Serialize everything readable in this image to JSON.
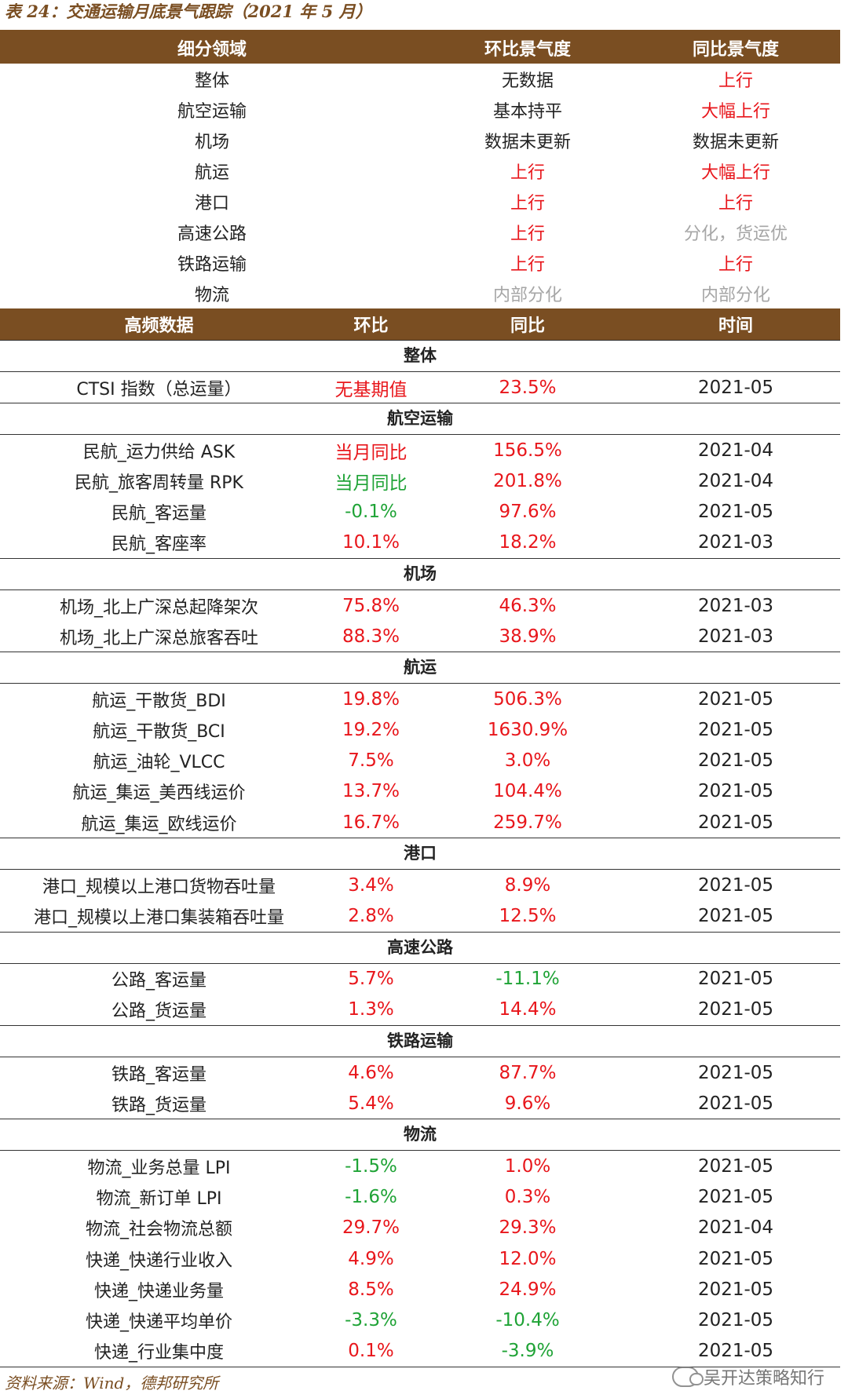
{
  "caption": "表 24：交通运输月底景气跟踪（2021 年 5 月）",
  "summary": {
    "headers": [
      "细分领域",
      "环比景气度",
      "同比景气度"
    ],
    "rows": [
      {
        "field": "整体",
        "mom": "无数据",
        "yoy": "上行",
        "mom_color": "dark",
        "yoy_color": "red"
      },
      {
        "field": "航空运输",
        "mom": "基本持平",
        "yoy": "大幅上行",
        "mom_color": "dark",
        "yoy_color": "red"
      },
      {
        "field": "机场",
        "mom": "数据未更新",
        "yoy": "数据未更新",
        "mom_color": "dark",
        "yoy_color": "dark"
      },
      {
        "field": "航运",
        "mom": "上行",
        "yoy": "大幅上行",
        "mom_color": "red",
        "yoy_color": "red"
      },
      {
        "field": "港口",
        "mom": "上行",
        "yoy": "上行",
        "mom_color": "red",
        "yoy_color": "red"
      },
      {
        "field": "高速公路",
        "mom": "上行",
        "yoy": "分化，货运优",
        "mom_color": "red",
        "yoy_color": "grey"
      },
      {
        "field": "铁路运输",
        "mom": "上行",
        "yoy": "上行",
        "mom_color": "red",
        "yoy_color": "red"
      },
      {
        "field": "物流",
        "mom": "内部分化",
        "yoy": "内部分化",
        "mom_color": "grey",
        "yoy_color": "grey"
      }
    ]
  },
  "detail": {
    "headers": [
      "高频数据",
      "环比",
      "同比",
      "时间"
    ],
    "groups": [
      {
        "title": "整体",
        "rows": [
          {
            "name": "CTSI 指数（总运量）",
            "mom": "无基期值",
            "yoy": "23.5%",
            "time": "2021-05",
            "mom_color": "red",
            "yoy_color": "red"
          }
        ]
      },
      {
        "title": "航空运输",
        "rows": [
          {
            "name": "民航_运力供给 ASK",
            "mom": "当月同比",
            "yoy": "156.5%",
            "time": "2021-04",
            "mom_color": "red",
            "yoy_color": "red"
          },
          {
            "name": "民航_旅客周转量 RPK",
            "mom": "当月同比",
            "yoy": "201.8%",
            "time": "2021-04",
            "mom_color": "green",
            "yoy_color": "red"
          },
          {
            "name": "民航_客运量",
            "mom": "-0.1%",
            "yoy": "97.6%",
            "time": "2021-05",
            "mom_color": "green",
            "yoy_color": "red"
          },
          {
            "name": "民航_客座率",
            "mom": "10.1%",
            "yoy": "18.2%",
            "time": "2021-03",
            "mom_color": "red",
            "yoy_color": "red"
          }
        ]
      },
      {
        "title": "机场",
        "rows": [
          {
            "name": "机场_北上广深总起降架次",
            "mom": "75.8%",
            "yoy": "46.3%",
            "time": "2021-03",
            "mom_color": "red",
            "yoy_color": "red"
          },
          {
            "name": "机场_北上广深总旅客吞吐",
            "mom": "88.3%",
            "yoy": "38.9%",
            "time": "2021-03",
            "mom_color": "red",
            "yoy_color": "red"
          }
        ]
      },
      {
        "title": "航运",
        "rows": [
          {
            "name": "航运_干散货_BDI",
            "mom": "19.8%",
            "yoy": "506.3%",
            "time": "2021-05",
            "mom_color": "red",
            "yoy_color": "red"
          },
          {
            "name": "航运_干散货_BCI",
            "mom": "19.2%",
            "yoy": "1630.9%",
            "time": "2021-05",
            "mom_color": "red",
            "yoy_color": "red"
          },
          {
            "name": "航运_油轮_VLCC",
            "mom": "7.5%",
            "yoy": "3.0%",
            "time": "2021-05",
            "mom_color": "red",
            "yoy_color": "red"
          },
          {
            "name": "航运_集运_美西线运价",
            "mom": "13.7%",
            "yoy": "104.4%",
            "time": "2021-05",
            "mom_color": "red",
            "yoy_color": "red"
          },
          {
            "name": "航运_集运_欧线运价",
            "mom": "16.7%",
            "yoy": "259.7%",
            "time": "2021-05",
            "mom_color": "red",
            "yoy_color": "red"
          }
        ]
      },
      {
        "title": "港口",
        "rows": [
          {
            "name": "港口_规模以上港口货物吞吐量",
            "mom": "3.4%",
            "yoy": "8.9%",
            "time": "2021-05",
            "mom_color": "red",
            "yoy_color": "red"
          },
          {
            "name": "港口_规模以上港口集装箱吞吐量",
            "mom": "2.8%",
            "yoy": "12.5%",
            "time": "2021-05",
            "mom_color": "red",
            "yoy_color": "red"
          }
        ]
      },
      {
        "title": "高速公路",
        "rows": [
          {
            "name": "公路_客运量",
            "mom": "5.7%",
            "yoy": "-11.1%",
            "time": "2021-05",
            "mom_color": "red",
            "yoy_color": "green"
          },
          {
            "name": "公路_货运量",
            "mom": "1.3%",
            "yoy": "14.4%",
            "time": "2021-05",
            "mom_color": "red",
            "yoy_color": "red"
          }
        ]
      },
      {
        "title": "铁路运输",
        "rows": [
          {
            "name": "铁路_客运量",
            "mom": "4.6%",
            "yoy": "87.7%",
            "time": "2021-05",
            "mom_color": "red",
            "yoy_color": "red"
          },
          {
            "name": "铁路_货运量",
            "mom": "5.4%",
            "yoy": "9.6%",
            "time": "2021-05",
            "mom_color": "red",
            "yoy_color": "red"
          }
        ]
      },
      {
        "title": "物流",
        "rows": [
          {
            "name": "物流_业务总量 LPI",
            "mom": "-1.5%",
            "yoy": "1.0%",
            "time": "2021-05",
            "mom_color": "green",
            "yoy_color": "red"
          },
          {
            "name": "物流_新订单 LPI",
            "mom": "-1.6%",
            "yoy": "0.3%",
            "time": "2021-05",
            "mom_color": "green",
            "yoy_color": "red"
          },
          {
            "name": "物流_社会物流总额",
            "mom": "29.7%",
            "yoy": "29.3%",
            "time": "2021-04",
            "mom_color": "red",
            "yoy_color": "red"
          },
          {
            "name": "快递_快递行业收入",
            "mom": "4.9%",
            "yoy": "12.0%",
            "time": "2021-05",
            "mom_color": "red",
            "yoy_color": "red"
          },
          {
            "name": "快递_快递业务量",
            "mom": "8.5%",
            "yoy": "24.9%",
            "time": "2021-05",
            "mom_color": "red",
            "yoy_color": "red"
          },
          {
            "name": "快递_快递平均单价",
            "mom": "-3.3%",
            "yoy": "-10.4%",
            "time": "2021-05",
            "mom_color": "green",
            "yoy_color": "green"
          },
          {
            "name": "快递_行业集中度",
            "mom": "0.1%",
            "yoy": "-3.9%",
            "time": "2021-05",
            "mom_color": "red",
            "yoy_color": "green"
          }
        ]
      }
    ]
  },
  "source": "资料来源：Wind，德邦研究所",
  "watermark": "吴开达策略知行",
  "colors": {
    "header_bg": "#7a4e22",
    "red": "#e8161b",
    "green": "#1fa336",
    "grey": "#a6a6a6"
  }
}
